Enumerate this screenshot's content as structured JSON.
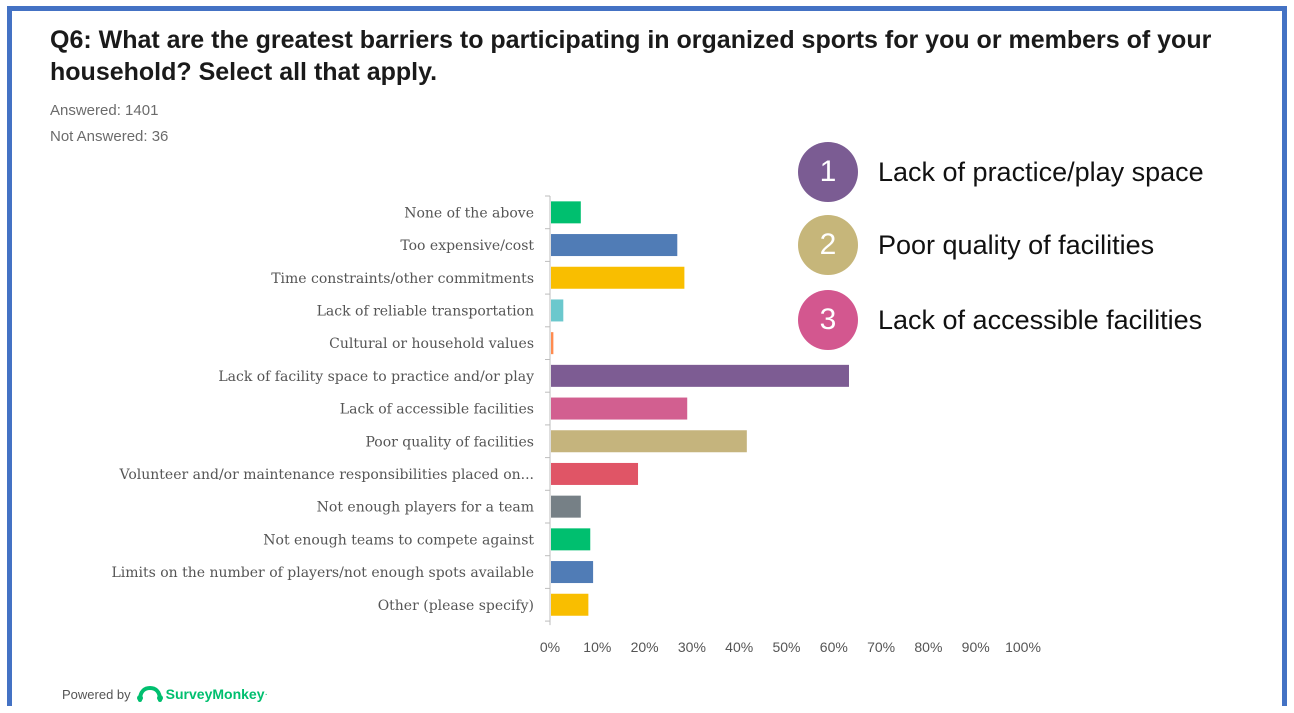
{
  "question": "Q6: What are the greatest barriers to participating in organized sports for you or members of your household? Select all that apply.",
  "answered": "Answered: 1401",
  "not_answered": "Not Answered: 36",
  "callouts": [
    {
      "number": "1",
      "label": "Lack of practice/play space",
      "color": "#7B5C93"
    },
    {
      "number": "2",
      "label": "Poor quality of facilities",
      "color": "#C6B67A"
    },
    {
      "number": "3",
      "label": "Lack of accessible facilities",
      "color": "#D3578F"
    }
  ],
  "footer": {
    "powered_by": "Powered by",
    "brand": "SurveyMonkey",
    "brand_mark": "·"
  },
  "chart_data": {
    "type": "bar",
    "orientation": "horizontal",
    "categories": [
      "None of the above",
      "Too expensive/cost",
      "Time constraints/other commitments",
      "Lack of reliable transportation",
      "Cultural or household values",
      "Lack of facility space to practice and/or play",
      "Lack of accessible facilities",
      "Poor quality of facilities",
      "Volunteer and/or maintenance responsibilities placed on...",
      "Not enough players for a team",
      "Not enough teams to compete against",
      "Limits on the number of players/not enough spots available",
      "Other (please specify)"
    ],
    "values": [
      6.3,
      26.7,
      28.2,
      2.6,
      0.5,
      63.0,
      28.8,
      41.4,
      18.4,
      6.3,
      8.3,
      8.9,
      7.9
    ],
    "colors": [
      "#00BF6F",
      "#507CB6",
      "#F9BE00",
      "#6BC8CD",
      "#FF8B4F",
      "#7D5C93",
      "#D25F90",
      "#C5B47D",
      "#E05566",
      "#768086",
      "#00BF6F",
      "#507CB6",
      "#F9BE00"
    ],
    "xlim": [
      0,
      100
    ],
    "x_ticks": [
      "0%",
      "10%",
      "20%",
      "30%",
      "40%",
      "50%",
      "60%",
      "70%",
      "80%",
      "90%",
      "100%"
    ],
    "unit": "%",
    "grid": false
  }
}
